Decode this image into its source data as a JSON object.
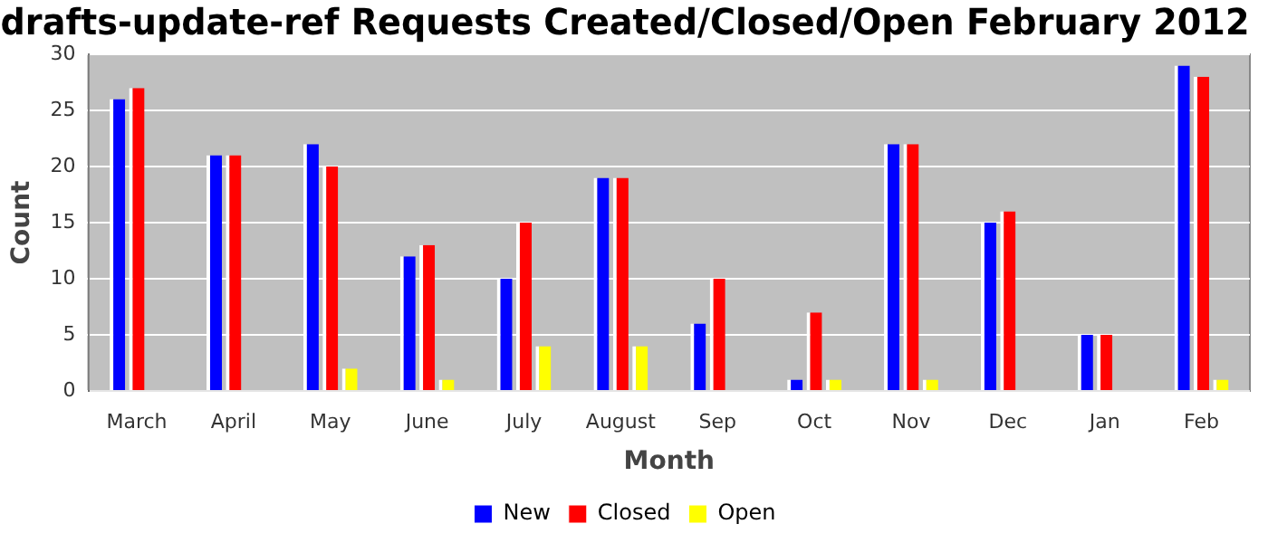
{
  "chart_data": {
    "type": "bar",
    "title": "drafts-update-ref Requests Created/Closed/Open February 2012",
    "xlabel": "Month",
    "ylabel": "Count",
    "categories": [
      "March",
      "April",
      "May",
      "June",
      "July",
      "August",
      "Sep",
      "Oct",
      "Nov",
      "Dec",
      "Jan",
      "Feb"
    ],
    "series": [
      {
        "name": "New",
        "color": "#0000ff",
        "values": [
          26,
          21,
          22,
          12,
          10,
          19,
          6,
          1,
          22,
          15,
          5,
          29
        ]
      },
      {
        "name": "Closed",
        "color": "#ff0000",
        "values": [
          27,
          21,
          20,
          13,
          15,
          19,
          10,
          7,
          22,
          16,
          5,
          28
        ]
      },
      {
        "name": "Open",
        "color": "#ffff00",
        "values": [
          0,
          0,
          2,
          1,
          4,
          4,
          0,
          1,
          1,
          0,
          0,
          1
        ]
      }
    ],
    "ylim": [
      0,
      30
    ],
    "yticks": [
      0,
      5,
      10,
      15,
      20,
      25,
      30
    ],
    "grid": "y",
    "legend": "bottom"
  }
}
